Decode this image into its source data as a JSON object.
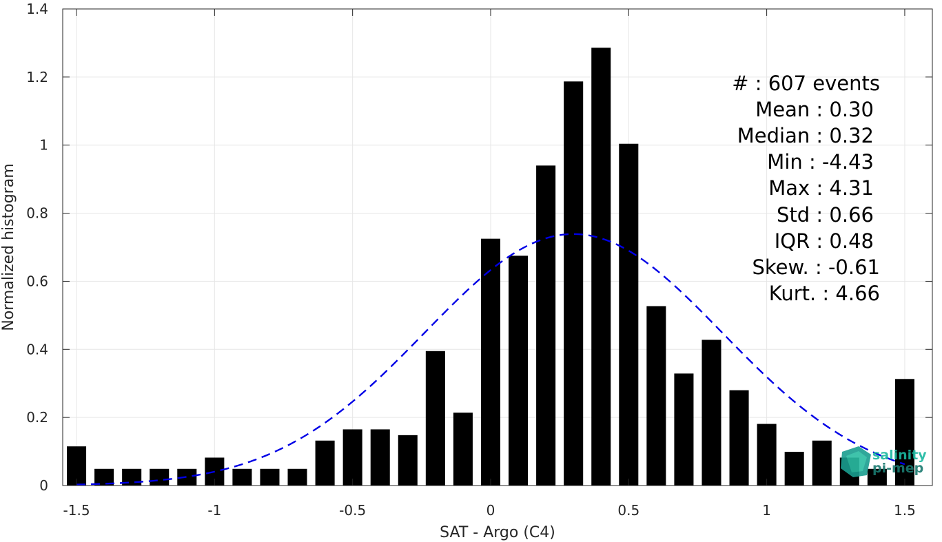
{
  "chart_data": {
    "type": "bar",
    "xlabel": "SAT - Argo (C4)",
    "ylabel": "Normalized histogram",
    "xlim": [
      -1.55,
      1.6
    ],
    "ylim": [
      0,
      1.4
    ],
    "xticks": [
      -1.5,
      -1,
      -0.5,
      0,
      0.5,
      1,
      1.5
    ],
    "xtick_labels": [
      "-1.5",
      "-1",
      "-0.5",
      "0",
      "0.5",
      "1",
      "1.5"
    ],
    "yticks": [
      0,
      0.2,
      0.4,
      0.6,
      0.8,
      1,
      1.2,
      1.4
    ],
    "ytick_labels": [
      "0",
      "0.2",
      "0.4",
      "0.6",
      "0.8",
      "1",
      "1.2",
      "1.4"
    ],
    "grid": true,
    "bar_color": "#000000",
    "bars": {
      "x": [
        -1.5,
        -1.4,
        -1.3,
        -1.2,
        -1.1,
        -1.0,
        -0.9,
        -0.8,
        -0.7,
        -0.6,
        -0.5,
        -0.4,
        -0.3,
        -0.2,
        -0.1,
        0.0,
        0.1,
        0.2,
        0.3,
        0.4,
        0.5,
        0.6,
        0.7,
        0.8,
        0.9,
        1.0,
        1.1,
        1.2,
        1.3,
        1.4,
        1.5
      ],
      "values": [
        0.115,
        0.049,
        0.049,
        0.049,
        0.049,
        0.082,
        0.049,
        0.049,
        0.049,
        0.132,
        0.165,
        0.165,
        0.148,
        0.395,
        0.214,
        0.725,
        0.675,
        0.94,
        1.187,
        1.286,
        1.004,
        0.527,
        0.329,
        0.428,
        0.28,
        0.181,
        0.099,
        0.132,
        0.082,
        0.049,
        0.313
      ]
    },
    "fit": {
      "type": "normal",
      "mean": 0.3,
      "std": 0.54,
      "color": "#0000e6",
      "style": "dashed"
    },
    "stats": [
      "#   : 607 events",
      "Mean : 0.30",
      "Median : 0.32",
      "Min : -4.43",
      "Max : 4.31",
      "Std : 0.66",
      "IQR : 0.48",
      "Skew. : -0.61",
      "Kurt. : 4.66"
    ]
  },
  "logo": {
    "line1": "salinity",
    "line2": "pi-mep",
    "color1": "#1ab8a0",
    "color2": "#1a7a70"
  }
}
